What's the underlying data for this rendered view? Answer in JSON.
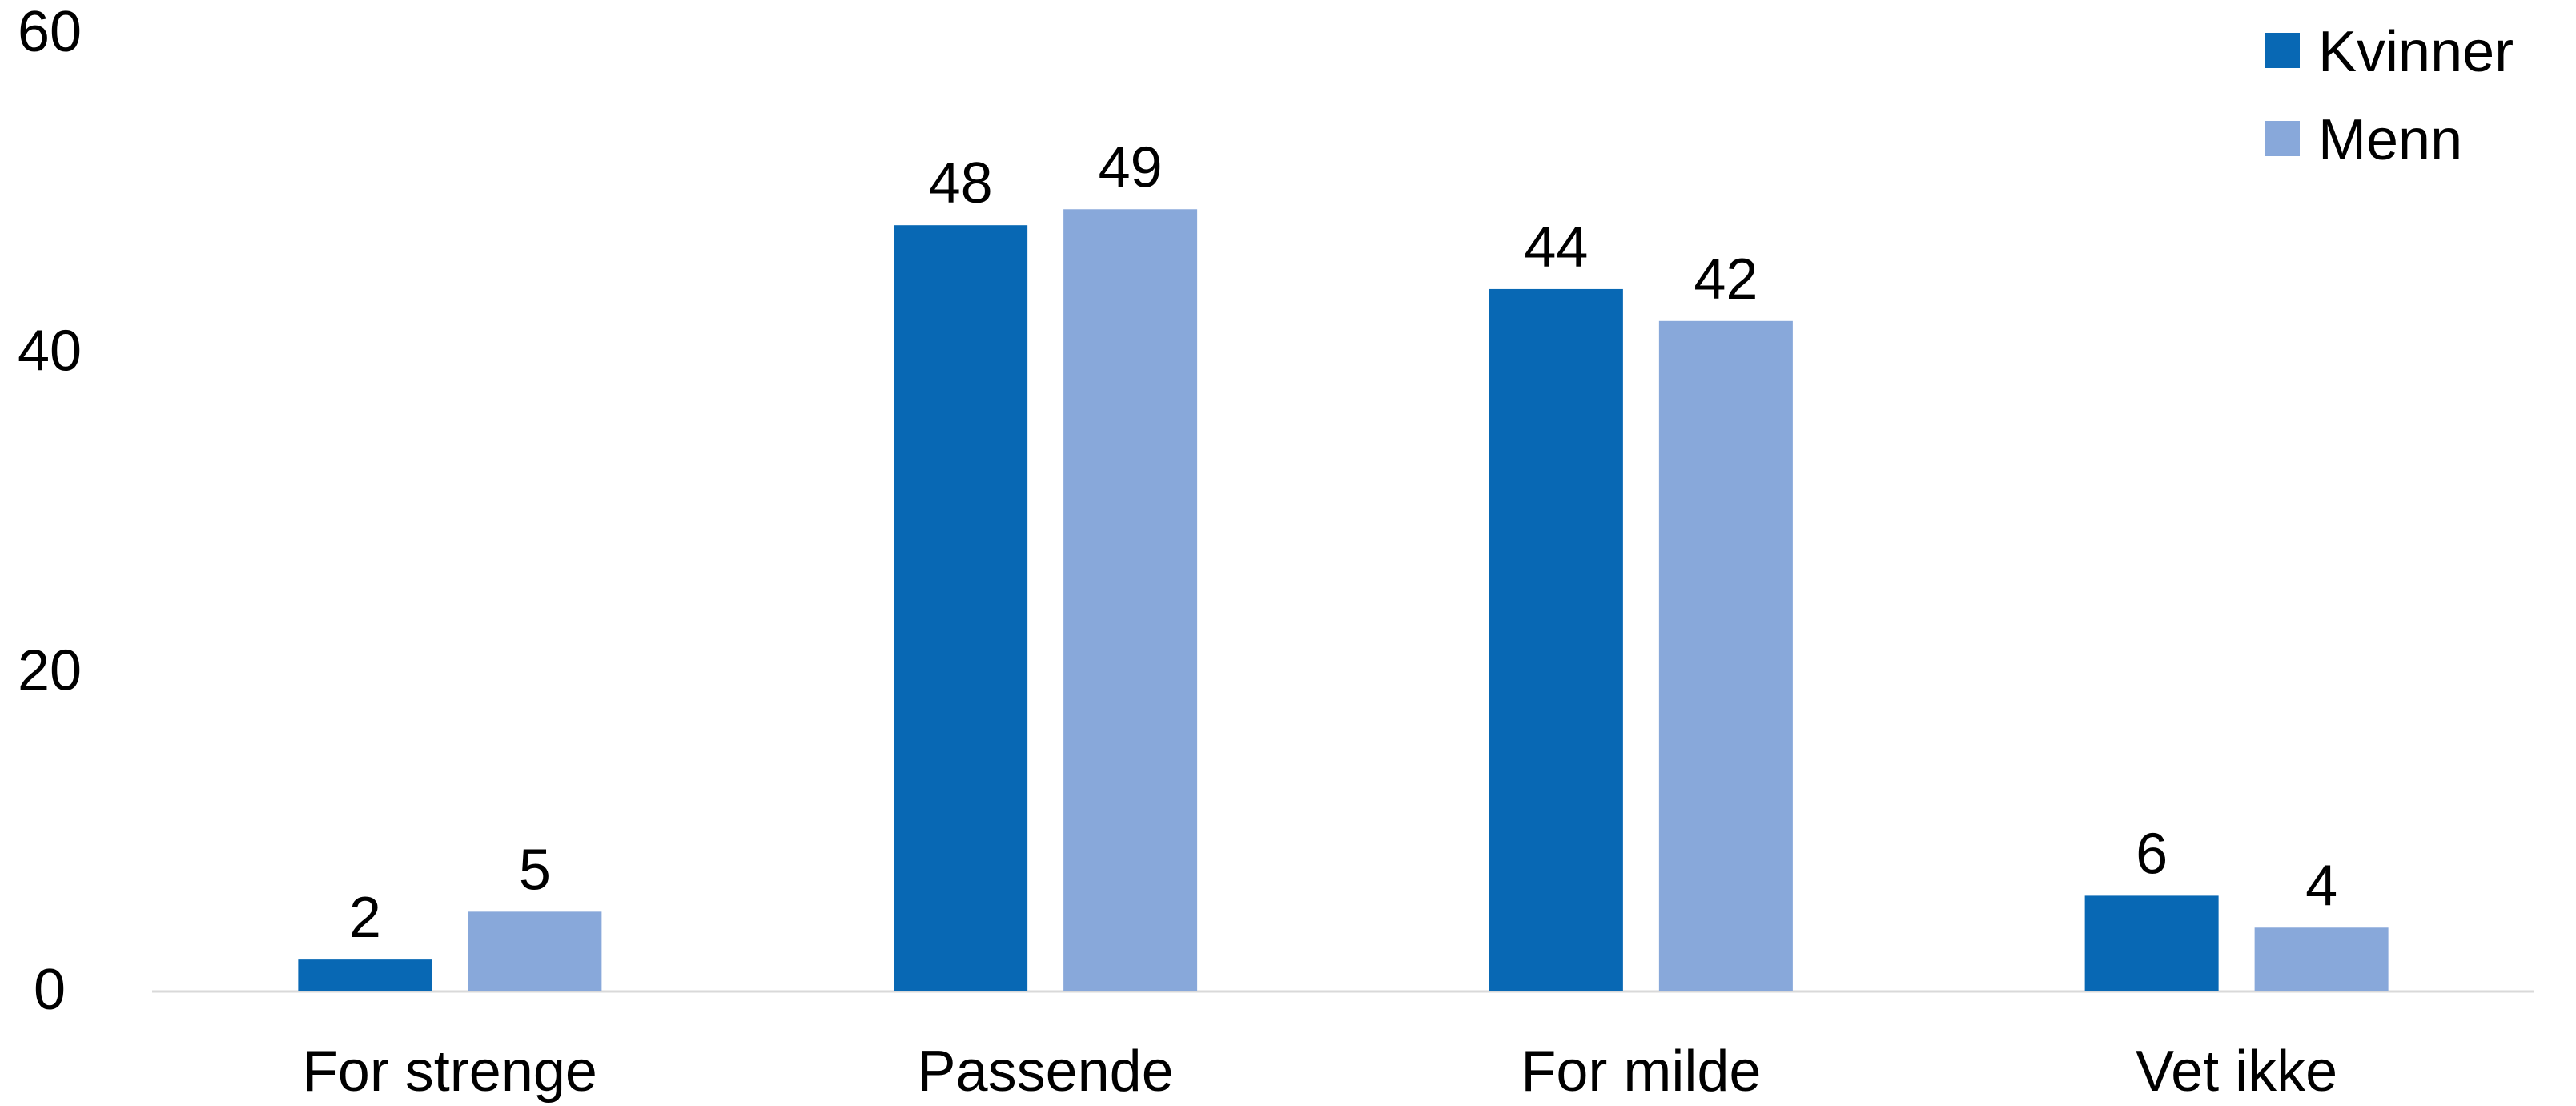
{
  "chart_data": {
    "type": "bar",
    "categories": [
      "For strenge",
      "Passende",
      "For milde",
      "Vet ikke"
    ],
    "series": [
      {
        "name": "Kvinner",
        "values": [
          2,
          48,
          44,
          6
        ],
        "color": "#0868b4"
      },
      {
        "name": "Menn",
        "values": [
          5,
          49,
          42,
          4
        ],
        "color": "#88a8da"
      }
    ],
    "title": "",
    "xlabel": "",
    "ylabel": "",
    "ylim": [
      0,
      60
    ],
    "yticks": [
      "0",
      "20",
      "40",
      "60"
    ],
    "grid": false,
    "legend_position": "top-right",
    "data_labels": true
  }
}
